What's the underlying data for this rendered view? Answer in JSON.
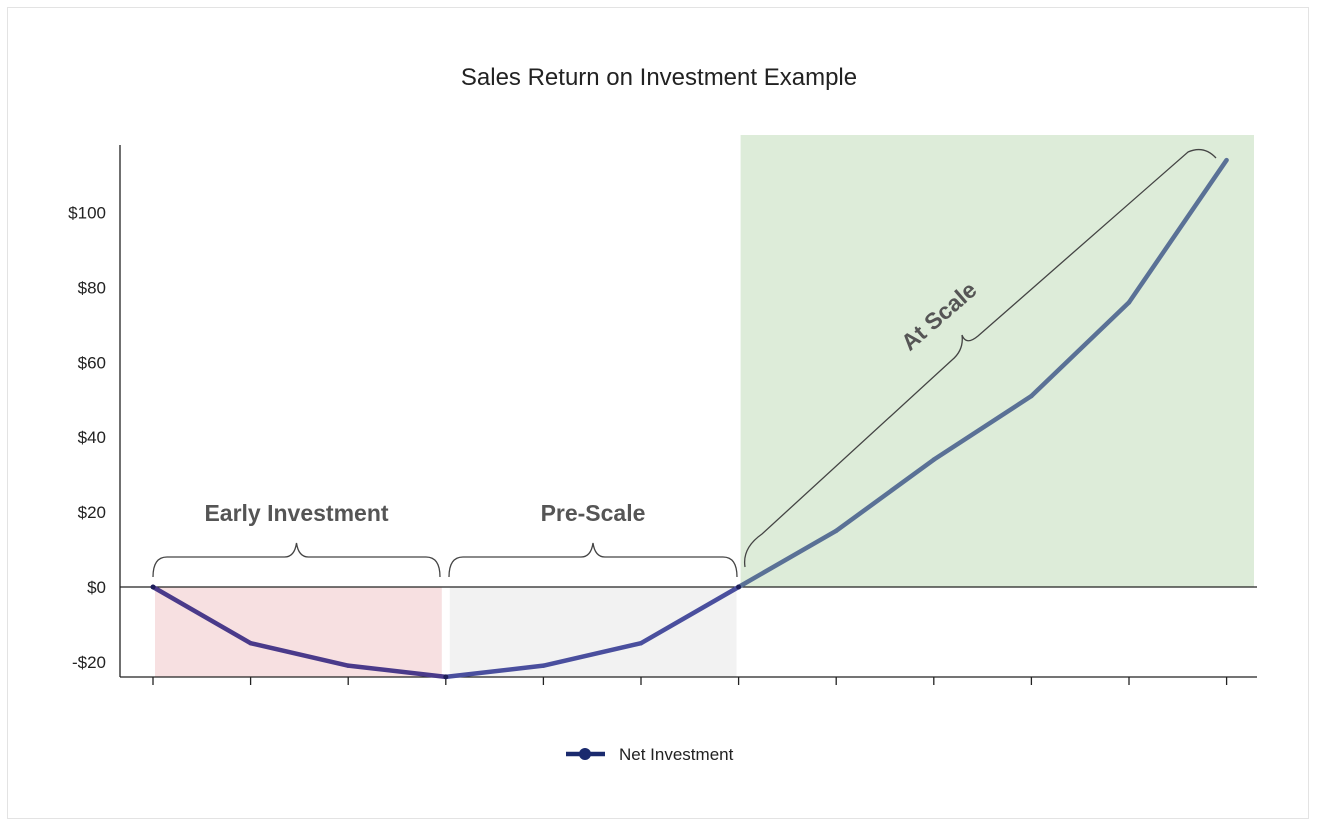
{
  "chart_data": {
    "type": "line",
    "title": "Sales Return on Investment Example",
    "xlabel": "",
    "ylabel": "",
    "x": [
      0,
      1,
      2,
      3,
      4,
      5,
      6,
      7,
      8,
      9,
      10,
      11
    ],
    "x_tick_labels": [],
    "series": [
      {
        "name": "Net Investment",
        "values": [
          0,
          -15,
          -21,
          -24,
          -21,
          -15,
          0,
          15,
          34,
          51,
          76,
          114
        ],
        "color": "#3d3f8f"
      }
    ],
    "ylim": [
      -24,
      118
    ],
    "y_ticks": [
      -20,
      0,
      20,
      40,
      60,
      80,
      100
    ],
    "y_tick_labels": [
      "-$20",
      "$0",
      "$20",
      "$40",
      "$60",
      "$80",
      "$100"
    ],
    "grid": false,
    "legend": "bottom-center",
    "regions": [
      {
        "label": "Early Investment",
        "x_start": 0,
        "x_end": 3,
        "color": "#f7e0e1"
      },
      {
        "label": "Pre-Scale",
        "x_start": 3,
        "x_end": 6,
        "color": "#f2f2f2"
      },
      {
        "label": "At Scale",
        "x_start": 6,
        "x_end": 11.3,
        "color": "#ddecd9"
      }
    ],
    "colors": {
      "early_line": "#4a3a8a",
      "pre_line": "#4a4f9e",
      "scale_line": "#5a7196",
      "axis": "#222222"
    }
  }
}
